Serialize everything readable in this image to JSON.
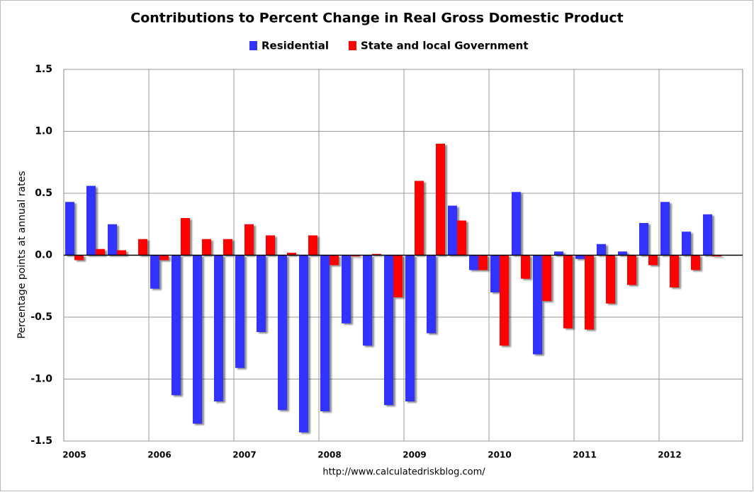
{
  "chart_data": {
    "type": "bar",
    "title": "Contributions to Percent Change in Real Gross Domestic Product",
    "y_label": "Percentage points at annual rates",
    "source": "http://www.calculatedriskblog.com/",
    "categories": [
      "2005",
      null,
      null,
      null,
      "2006",
      null,
      null,
      null,
      "2007",
      null,
      null,
      null,
      "2008",
      null,
      null,
      null,
      "2009",
      null,
      null,
      null,
      "2010",
      null,
      null,
      null,
      "2011",
      null,
      null,
      null,
      "2012",
      null,
      null
    ],
    "series": [
      {
        "name": "Residential",
        "color": "#3333ff",
        "values": [
          0.43,
          0.56,
          0.25,
          0,
          -0.27,
          -1.13,
          -1.36,
          -1.18,
          -0.91,
          -0.62,
          -1.25,
          -1.43,
          -1.26,
          -0.55,
          -0.73,
          -1.21,
          -1.18,
          -0.63,
          0.4,
          -0.12,
          -0.3,
          0.51,
          -0.8,
          0.03,
          -0.03,
          0.09,
          0.03,
          0.26,
          0.43,
          0.19,
          0.33
        ]
      },
      {
        "name": "State and local Government",
        "color": "#ff0000",
        "values": [
          -0.04,
          0.05,
          0.04,
          0.13,
          -0.04,
          0.3,
          0.13,
          0.13,
          0.25,
          0.16,
          0.02,
          0.16,
          -0.08,
          -0.01,
          0.01,
          -0.34,
          0.6,
          0.9,
          0.28,
          -0.12,
          -0.73,
          -0.19,
          -0.37,
          -0.59,
          -0.6,
          -0.39,
          -0.24,
          -0.08,
          -0.26,
          -0.12,
          -0.01
        ]
      }
    ],
    "ylim": [
      -1.5,
      1.5
    ],
    "yticks": [
      -1.5,
      {
        "value": -1,
        "label": "-1.0"
      },
      -0.5,
      {
        "value": 0,
        "label": "0.0"
      },
      0.5,
      {
        "value": 1,
        "label": "1.0"
      },
      1.5
    ],
    "grid": true,
    "legend": "top"
  }
}
